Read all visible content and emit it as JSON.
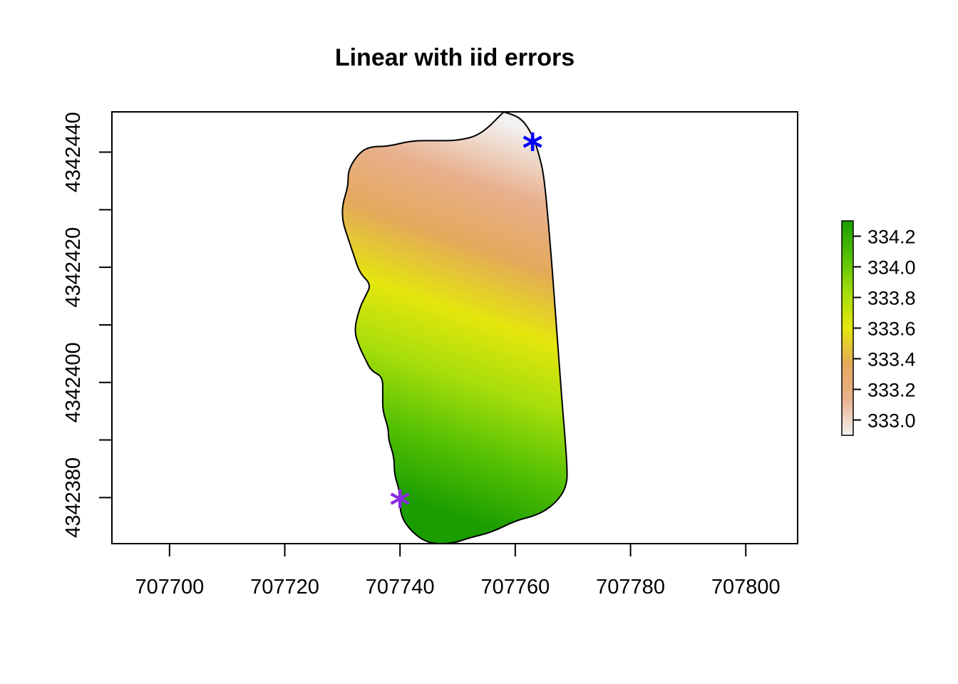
{
  "chart_data": {
    "type": "heatmap",
    "title": "Linear with iid errors",
    "xlabel": "",
    "ylabel": "",
    "xlim": [
      707690,
      707809
    ],
    "ylim": [
      4342372,
      4342447
    ],
    "x_ticks": [
      707700,
      707720,
      707740,
      707760,
      707780,
      707800
    ],
    "x_tick_labels": [
      "707700",
      "707720",
      "707740",
      "707760",
      "707780",
      "707800"
    ],
    "y_ticks": [
      4342380,
      4342390,
      4342400,
      4342410,
      4342420,
      4342430,
      4342440
    ],
    "y_tick_labels": [
      "4342380",
      "",
      "4342400",
      "",
      "4342420",
      "",
      "4342440"
    ],
    "grid": false,
    "legend": {
      "placement": "right",
      "range": [
        332.9,
        334.3
      ],
      "breaks": [
        333.0,
        333.2,
        333.4,
        333.6,
        333.8,
        334.0,
        334.2
      ],
      "labels": [
        "333.0",
        "333.2",
        "333.4",
        "333.6",
        "333.8",
        "334.0",
        "334.2"
      ],
      "colors": [
        "#f2f2f2",
        "#e8b08d",
        "#e4a95b",
        "#e4d011",
        "#a7de0b",
        "#55c103",
        "#1b9d00"
      ]
    },
    "field": {
      "low_value": 332.9,
      "high_value": 334.3,
      "low_corner": [
        707762,
        4342444
      ],
      "high_corner": [
        707740,
        4342380
      ]
    },
    "region_outline": [
      [
        707758,
        4342447
      ],
      [
        707761,
        4342446
      ],
      [
        707763,
        4342443
      ],
      [
        707764,
        4342440
      ],
      [
        707765,
        4342436
      ],
      [
        707766,
        4342425
      ],
      [
        707767,
        4342412
      ],
      [
        707768,
        4342398
      ],
      [
        707769,
        4342386
      ],
      [
        707769,
        4342382
      ],
      [
        707767,
        4342379
      ],
      [
        707764,
        4342377
      ],
      [
        707760,
        4342376
      ],
      [
        707756,
        4342374
      ],
      [
        707752,
        4342373
      ],
      [
        707749,
        4342372
      ],
      [
        707745,
        4342372
      ],
      [
        707742,
        4342374
      ],
      [
        707740,
        4342377
      ],
      [
        707740,
        4342381
      ],
      [
        707739,
        4342384
      ],
      [
        707739,
        4342387
      ],
      [
        707738,
        4342390
      ],
      [
        707738,
        4342392
      ],
      [
        707737,
        4342395
      ],
      [
        707737,
        4342398
      ],
      [
        707737,
        4342401
      ],
      [
        707735,
        4342402
      ],
      [
        707734,
        4342404
      ],
      [
        707733,
        4342406
      ],
      [
        707732,
        4342409
      ],
      [
        707733,
        4342413
      ],
      [
        707734,
        4342415
      ],
      [
        707735,
        4342417
      ],
      [
        707733,
        4342419
      ],
      [
        707732,
        4342422
      ],
      [
        707731,
        4342425
      ],
      [
        707730,
        4342428
      ],
      [
        707730,
        4342431
      ],
      [
        707731,
        4342434
      ],
      [
        707731,
        4342437
      ],
      [
        707733,
        4342440
      ],
      [
        707735,
        4342441
      ],
      [
        707738,
        4342441
      ],
      [
        707742,
        4342442
      ],
      [
        707746,
        4342442
      ],
      [
        707750,
        4342442
      ],
      [
        707754,
        4342443
      ],
      [
        707758,
        4342447
      ]
    ],
    "points": [
      {
        "x": 707763,
        "y": 4342442,
        "symbol": "*",
        "color": "#0000ff"
      },
      {
        "x": 707740,
        "y": 4342380,
        "symbol": "*",
        "color": "#8a2be2"
      }
    ]
  }
}
